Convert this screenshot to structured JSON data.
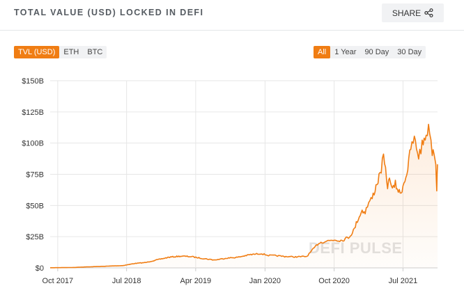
{
  "header": {
    "title": "TOTAL VALUE (USD) LOCKED IN DEFI",
    "share_label": "SHARE"
  },
  "currency_toggle": [
    {
      "label": "TVL (USD)",
      "active": true
    },
    {
      "label": "ETH",
      "active": false
    },
    {
      "label": "BTC",
      "active": false
    }
  ],
  "range_toggle": [
    {
      "label": "All",
      "active": true
    },
    {
      "label": "1 Year",
      "active": false
    },
    {
      "label": "90 Day",
      "active": false
    },
    {
      "label": "30 Day",
      "active": false
    }
  ],
  "watermark": "DEFI PULSE",
  "colors": {
    "accent": "#f07d13",
    "line": "#f07d13"
  },
  "chart_data": {
    "type": "area",
    "y_tick_labels": [
      "$0",
      "$25B",
      "$50B",
      "$75B",
      "$100B",
      "$125B",
      "$150B"
    ],
    "x_tick_labels": [
      "Oct 2017",
      "Jul 2018",
      "Apr 2019",
      "Jan 2020",
      "Oct 2020",
      "Jul 2021"
    ],
    "x_tick_dates": [
      "2017-10-01",
      "2018-07-01",
      "2019-04-01",
      "2020-01-01",
      "2020-10-01",
      "2021-07-01"
    ],
    "ylim": [
      0,
      150
    ],
    "xlim": [
      "2017-09-01",
      "2021-11-15"
    ],
    "grid": true,
    "series": [
      {
        "x": [
          "2017-09-01",
          "2017-12-01",
          "2018-01-15",
          "2018-03-01",
          "2018-05-01",
          "2018-06-15",
          "2018-08-01",
          "2018-09-15",
          "2018-11-01",
          "2018-12-15",
          "2019-02-01",
          "2019-03-15",
          "2019-05-01",
          "2019-06-15",
          "2019-08-01",
          "2019-09-15",
          "2019-11-01",
          "2019-12-15",
          "2020-01-15",
          "2020-02-15",
          "2020-03-15",
          "2020-05-01",
          "2020-06-15",
          "2020-08-01",
          "2020-09-01",
          "2020-10-01",
          "2020-11-01",
          "2020-12-01",
          "2020-12-20",
          "2021-01-01",
          "2021-01-20",
          "2021-02-01",
          "2021-02-15",
          "2021-03-01",
          "2021-03-20",
          "2021-04-01",
          "2021-04-15",
          "2021-05-01",
          "2021-05-12",
          "2021-05-20",
          "2021-06-01",
          "2021-06-20",
          "2021-07-01",
          "2021-07-20",
          "2021-08-01",
          "2021-08-15",
          "2021-09-01",
          "2021-09-15",
          "2021-10-01",
          "2021-10-15",
          "2021-10-25",
          "2021-11-01",
          "2021-11-08",
          "2021-11-12",
          "2021-11-15"
        ],
        "y": [
          0.1,
          0.3,
          0.7,
          1.0,
          1.5,
          1.8,
          3.5,
          4.3,
          6.5,
          8.5,
          9.4,
          9.0,
          7.5,
          6.3,
          7.8,
          8.5,
          10.5,
          11.5,
          10.0,
          9.8,
          9.2,
          8.8,
          9.2,
          20.0,
          21.5,
          22.5,
          22.0,
          25.0,
          31.0,
          38.0,
          46.0,
          45.0,
          52.0,
          56.0,
          68.0,
          75.0,
          88.0,
          66.0,
          72.0,
          62.0,
          67.0,
          59.0,
          66.0,
          79.0,
          96.0,
          103.0,
          90.0,
          98.0,
          108.0,
          112.0,
          93.0,
          95.0,
          85.0,
          64.0,
          83.0
        ]
      }
    ]
  }
}
